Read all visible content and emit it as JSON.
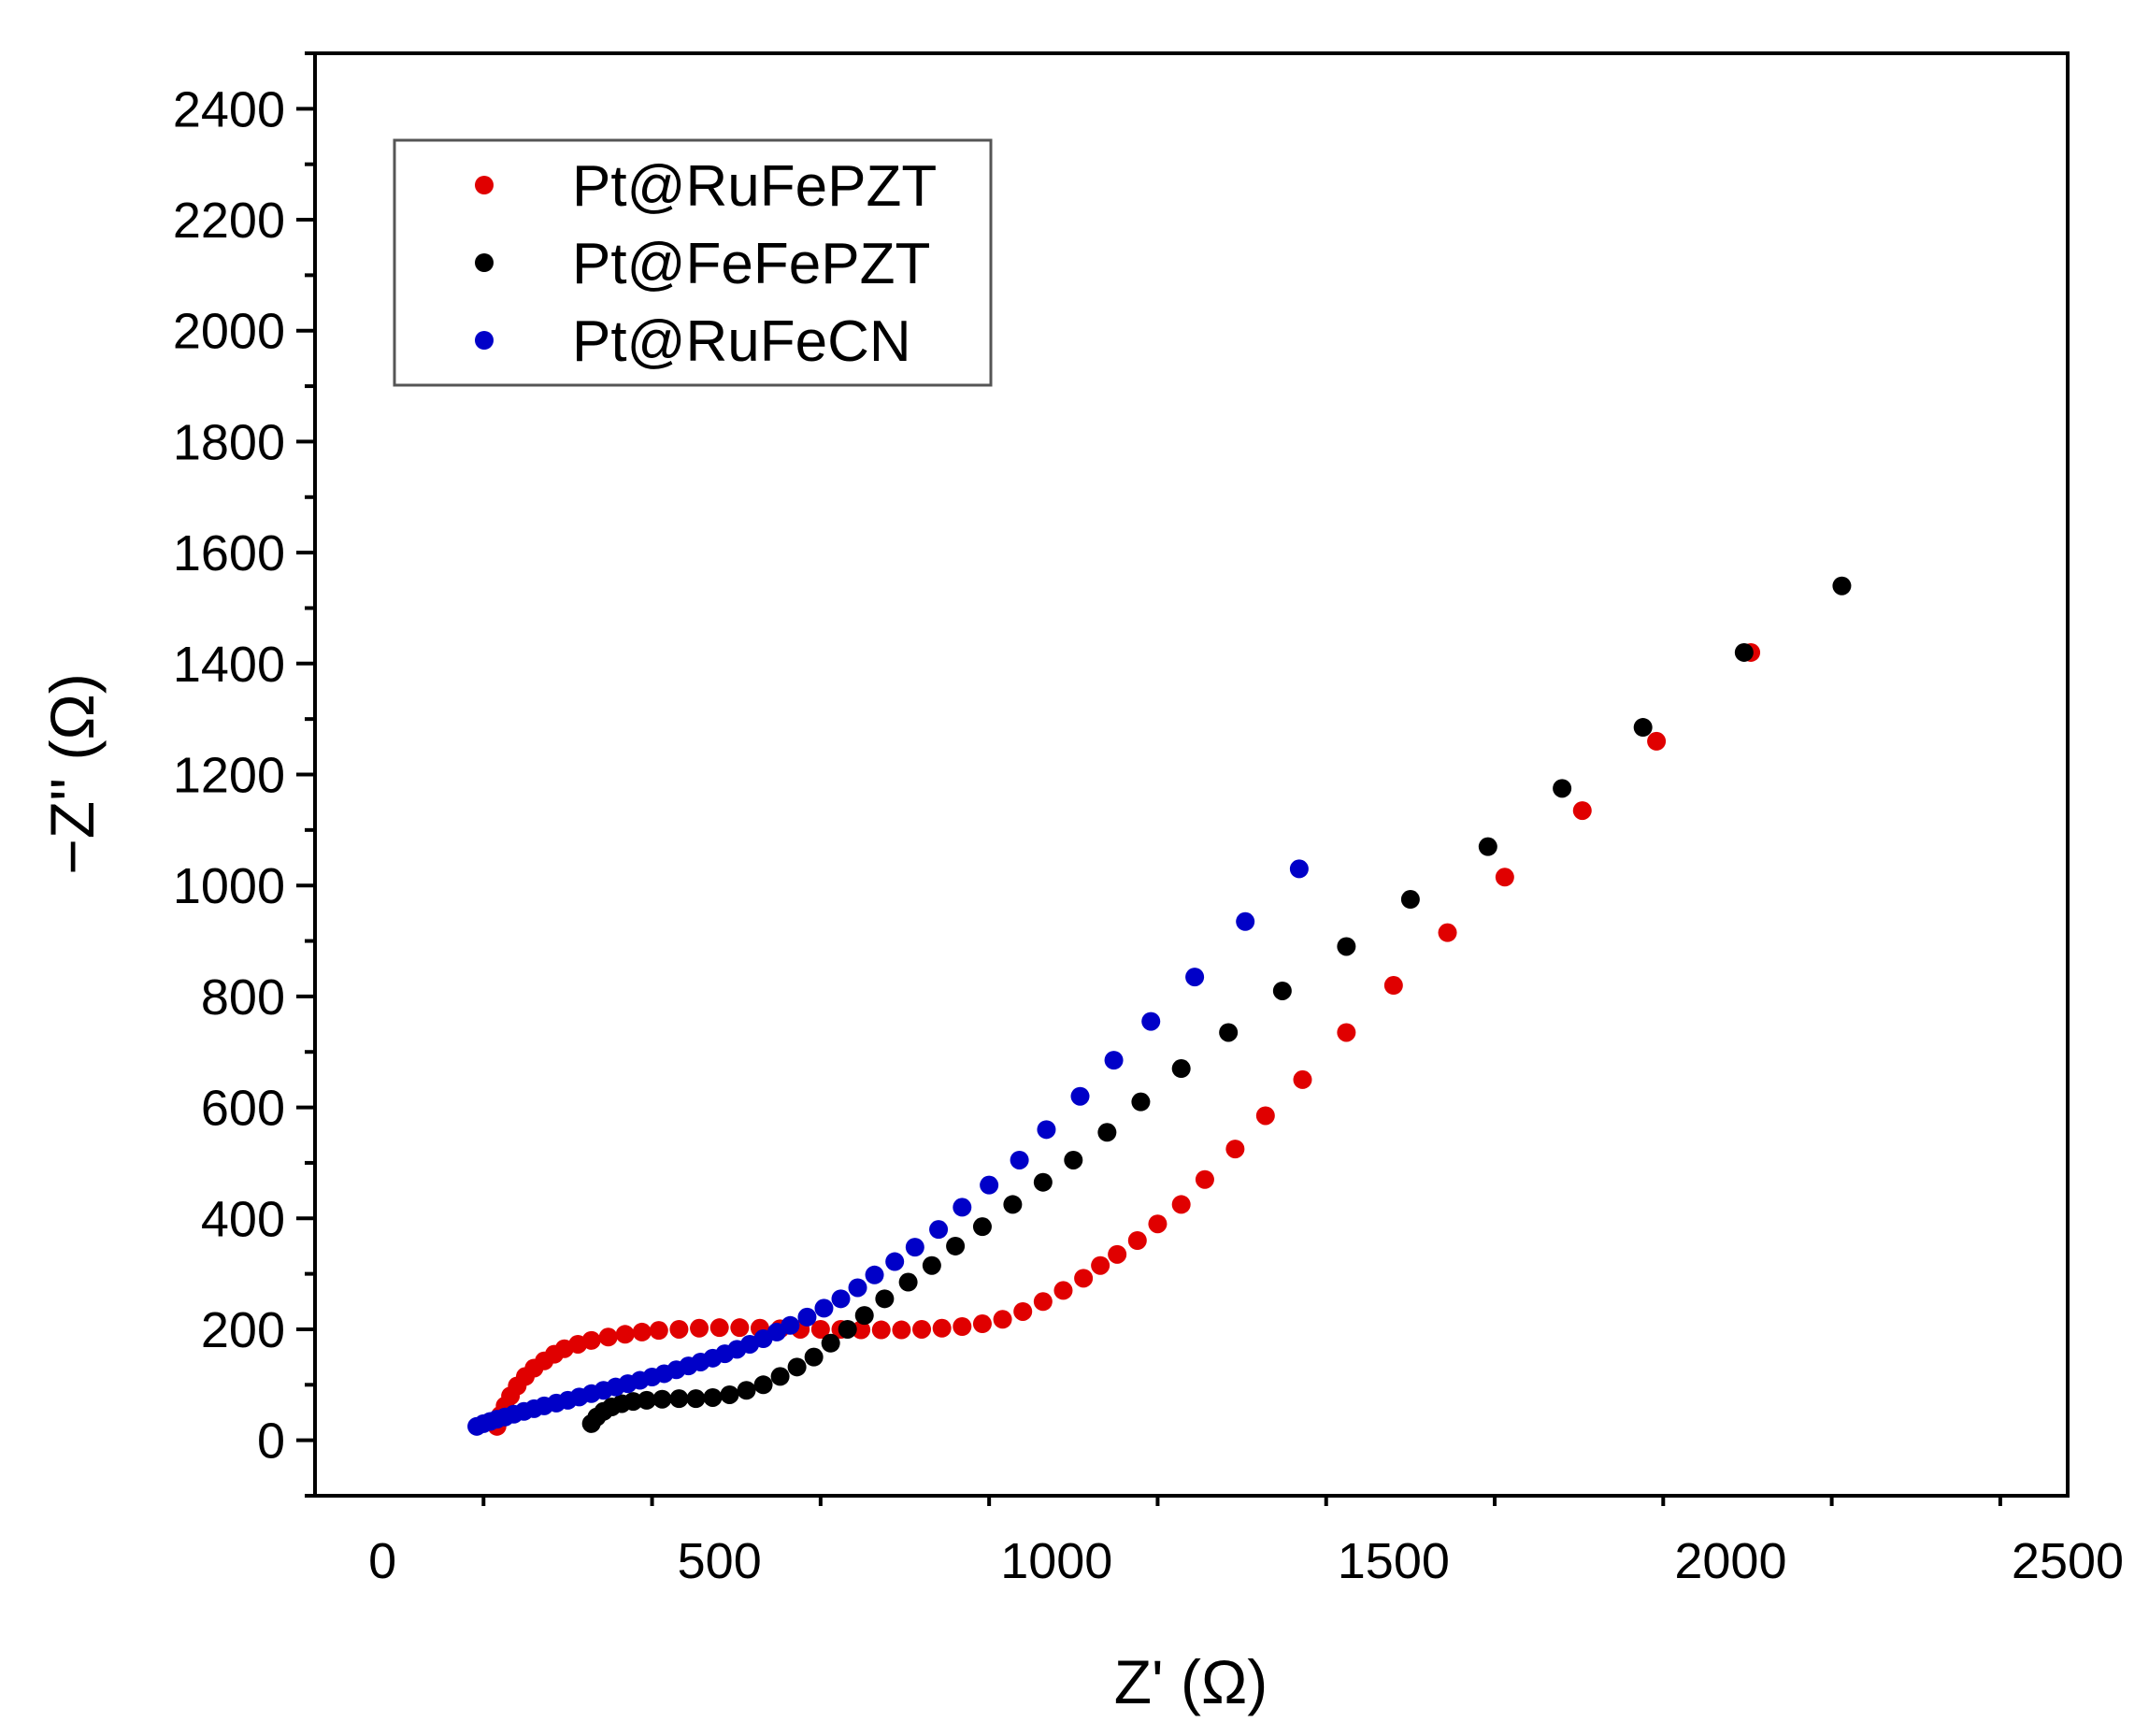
{
  "chart_data": {
    "type": "scatter",
    "xlabel": "Z' (Ω)",
    "ylabel": "−Z'' (Ω)",
    "xlim": [
      -100,
      2500
    ],
    "ylim": [
      -100,
      2500
    ],
    "xticks": [
      0,
      500,
      1000,
      1500,
      2000,
      2500
    ],
    "yticks": [
      0,
      200,
      400,
      600,
      800,
      1000,
      1200,
      1400,
      1600,
      1800,
      2000,
      2200,
      2400
    ],
    "grid": false,
    "legend_position": "top-left",
    "colors": {
      "Pt@RuFePZT": "#e00000",
      "Pt@FeFePZT": "#000000",
      "Pt@RuFeCN": "#0000c8"
    },
    "series": [
      {
        "name": "Pt@RuFePZT",
        "color": "#e00000",
        "points": [
          [
            170,
            25
          ],
          [
            175,
            45
          ],
          [
            182,
            62
          ],
          [
            190,
            80
          ],
          [
            200,
            98
          ],
          [
            212,
            115
          ],
          [
            225,
            130
          ],
          [
            240,
            143
          ],
          [
            255,
            155
          ],
          [
            270,
            165
          ],
          [
            290,
            173
          ],
          [
            310,
            180
          ],
          [
            335,
            186
          ],
          [
            360,
            191
          ],
          [
            385,
            195
          ],
          [
            410,
            198
          ],
          [
            440,
            200
          ],
          [
            470,
            202
          ],
          [
            500,
            203
          ],
          [
            530,
            203
          ],
          [
            560,
            202
          ],
          [
            590,
            201
          ],
          [
            620,
            200
          ],
          [
            650,
            200
          ],
          [
            680,
            200
          ],
          [
            710,
            199
          ],
          [
            740,
            199
          ],
          [
            770,
            199
          ],
          [
            800,
            200
          ],
          [
            830,
            202
          ],
          [
            860,
            205
          ],
          [
            890,
            210
          ],
          [
            920,
            218
          ],
          [
            950,
            232
          ],
          [
            980,
            250
          ],
          [
            1010,
            270
          ],
          [
            1040,
            292
          ],
          [
            1065,
            315
          ],
          [
            1090,
            335
          ],
          [
            1120,
            360
          ],
          [
            1150,
            390
          ],
          [
            1185,
            425
          ],
          [
            1220,
            470
          ],
          [
            1265,
            525
          ],
          [
            1310,
            585
          ],
          [
            1365,
            650
          ],
          [
            1430,
            735
          ],
          [
            1500,
            820
          ],
          [
            1580,
            915
          ],
          [
            1665,
            1015
          ],
          [
            1780,
            1135
          ],
          [
            1890,
            1260
          ],
          [
            2030,
            1420
          ]
        ]
      },
      {
        "name": "Pt@FeFePZT",
        "color": "#000000",
        "points": [
          [
            310,
            30
          ],
          [
            318,
            42
          ],
          [
            328,
            52
          ],
          [
            340,
            60
          ],
          [
            355,
            66
          ],
          [
            372,
            70
          ],
          [
            392,
            72
          ],
          [
            415,
            74
          ],
          [
            440,
            75
          ],
          [
            465,
            75
          ],
          [
            490,
            77
          ],
          [
            515,
            82
          ],
          [
            540,
            90
          ],
          [
            565,
            100
          ],
          [
            590,
            115
          ],
          [
            615,
            132
          ],
          [
            640,
            150
          ],
          [
            665,
            175
          ],
          [
            690,
            200
          ],
          [
            715,
            225
          ],
          [
            745,
            255
          ],
          [
            780,
            285
          ],
          [
            815,
            315
          ],
          [
            850,
            350
          ],
          [
            890,
            385
          ],
          [
            935,
            425
          ],
          [
            980,
            465
          ],
          [
            1025,
            505
          ],
          [
            1075,
            555
          ],
          [
            1125,
            610
          ],
          [
            1185,
            670
          ],
          [
            1255,
            735
          ],
          [
            1335,
            810
          ],
          [
            1430,
            890
          ],
          [
            1525,
            975
          ],
          [
            1640,
            1070
          ],
          [
            1750,
            1175
          ],
          [
            1870,
            1285
          ],
          [
            2020,
            1420
          ],
          [
            2165,
            1540
          ]
        ]
      },
      {
        "name": "Pt@RuFeCN",
        "color": "#0000c8",
        "points": [
          [
            140,
            25
          ],
          [
            150,
            30
          ],
          [
            160,
            34
          ],
          [
            170,
            38
          ],
          [
            182,
            42
          ],
          [
            195,
            47
          ],
          [
            210,
            52
          ],
          [
            225,
            57
          ],
          [
            240,
            62
          ],
          [
            258,
            67
          ],
          [
            275,
            72
          ],
          [
            292,
            78
          ],
          [
            310,
            84
          ],
          [
            328,
            90
          ],
          [
            346,
            96
          ],
          [
            364,
            102
          ],
          [
            382,
            108
          ],
          [
            400,
            114
          ],
          [
            418,
            120
          ],
          [
            436,
            127
          ],
          [
            454,
            134
          ],
          [
            472,
            141
          ],
          [
            490,
            148
          ],
          [
            508,
            156
          ],
          [
            526,
            164
          ],
          [
            545,
            173
          ],
          [
            565,
            183
          ],
          [
            585,
            195
          ],
          [
            605,
            207
          ],
          [
            630,
            222
          ],
          [
            655,
            238
          ],
          [
            680,
            255
          ],
          [
            705,
            275
          ],
          [
            730,
            298
          ],
          [
            760,
            322
          ],
          [
            790,
            348
          ],
          [
            825,
            380
          ],
          [
            860,
            420
          ],
          [
            900,
            460
          ],
          [
            945,
            505
          ],
          [
            985,
            560
          ],
          [
            1035,
            620
          ],
          [
            1085,
            685
          ],
          [
            1140,
            755
          ],
          [
            1205,
            835
          ],
          [
            1280,
            935
          ],
          [
            1360,
            1030
          ]
        ]
      }
    ]
  }
}
